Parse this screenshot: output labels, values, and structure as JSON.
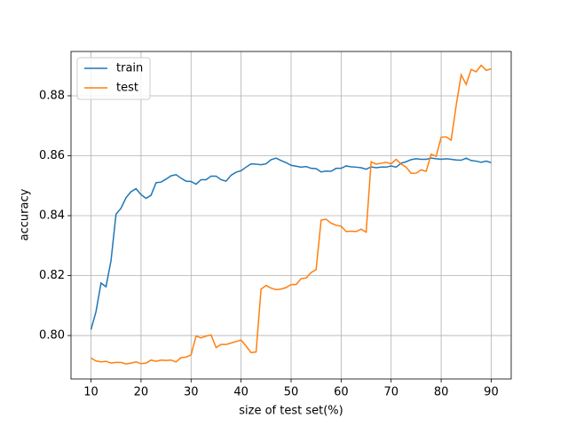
{
  "chart_data": {
    "type": "line",
    "xlabel": "size of test set(%)",
    "ylabel": "accuracy",
    "x": [
      10,
      11,
      12,
      13,
      14,
      15,
      16,
      17,
      18,
      19,
      20,
      21,
      22,
      23,
      24,
      25,
      26,
      27,
      28,
      29,
      30,
      31,
      32,
      33,
      34,
      35,
      36,
      37,
      38,
      39,
      40,
      41,
      42,
      43,
      44,
      45,
      46,
      47,
      48,
      49,
      50,
      51,
      52,
      53,
      54,
      55,
      56,
      57,
      58,
      59,
      60,
      61,
      62,
      63,
      64,
      65,
      66,
      67,
      68,
      69,
      70,
      71,
      72,
      73,
      74,
      75,
      76,
      77,
      78,
      79,
      80,
      81,
      82,
      83,
      84,
      85,
      86,
      87,
      88,
      89,
      90
    ],
    "series": [
      {
        "name": "train",
        "color": "#1f77b4",
        "values": [
          0.802,
          0.808,
          0.8175,
          0.8163,
          0.825,
          0.8405,
          0.8425,
          0.846,
          0.848,
          0.849,
          0.847,
          0.8458,
          0.8468,
          0.851,
          0.8512,
          0.8522,
          0.8533,
          0.8537,
          0.8525,
          0.8515,
          0.8514,
          0.8505,
          0.852,
          0.852,
          0.8532,
          0.8532,
          0.852,
          0.8515,
          0.8535,
          0.8545,
          0.855,
          0.8562,
          0.8573,
          0.8572,
          0.857,
          0.8573,
          0.8587,
          0.8592,
          0.8584,
          0.8577,
          0.8568,
          0.8565,
          0.8562,
          0.8564,
          0.8558,
          0.8557,
          0.8546,
          0.8549,
          0.8548,
          0.8558,
          0.8558,
          0.8566,
          0.8563,
          0.8562,
          0.856,
          0.8555,
          0.8563,
          0.856,
          0.8562,
          0.8562,
          0.8566,
          0.8562,
          0.8575,
          0.858,
          0.8587,
          0.859,
          0.8588,
          0.8588,
          0.8592,
          0.859,
          0.8588,
          0.859,
          0.8588,
          0.8586,
          0.8585,
          0.8592,
          0.8584,
          0.8582,
          0.8578,
          0.8582,
          0.8577
        ]
      },
      {
        "name": "test",
        "color": "#ff7f0e",
        "values": [
          0.7925,
          0.7915,
          0.7912,
          0.7914,
          0.7908,
          0.791,
          0.791,
          0.7905,
          0.7908,
          0.7912,
          0.7906,
          0.7908,
          0.7918,
          0.7914,
          0.7918,
          0.7917,
          0.7918,
          0.7912,
          0.7926,
          0.7928,
          0.7935,
          0.7998,
          0.7992,
          0.7998,
          0.8002,
          0.796,
          0.797,
          0.797,
          0.7975,
          0.798,
          0.7985,
          0.7965,
          0.7943,
          0.7945,
          0.8155,
          0.8167,
          0.8158,
          0.8153,
          0.8155,
          0.816,
          0.817,
          0.817,
          0.819,
          0.8192,
          0.821,
          0.822,
          0.8385,
          0.8388,
          0.8375,
          0.8368,
          0.8365,
          0.8347,
          0.8348,
          0.8347,
          0.8355,
          0.8345,
          0.858,
          0.8572,
          0.8575,
          0.8578,
          0.8573,
          0.8588,
          0.8572,
          0.8562,
          0.8541,
          0.8542,
          0.8553,
          0.8548,
          0.8605,
          0.8598,
          0.8662,
          0.8663,
          0.8652,
          0.8768,
          0.887,
          0.8838,
          0.8888,
          0.888,
          0.8902,
          0.8885,
          0.889
        ]
      }
    ],
    "xlim": [
      6,
      94
    ],
    "ylim": [
      0.7855,
      0.8948
    ],
    "xticks": [
      10,
      20,
      30,
      40,
      50,
      60,
      70,
      80,
      90
    ],
    "yticks": [
      {
        "value": 0.8,
        "label": "0.80"
      },
      {
        "value": 0.82,
        "label": "0.82"
      },
      {
        "value": 0.84,
        "label": "0.84"
      },
      {
        "value": 0.86,
        "label": "0.86"
      },
      {
        "value": 0.88,
        "label": "0.88"
      }
    ],
    "grid": true,
    "legend": "upper left"
  }
}
